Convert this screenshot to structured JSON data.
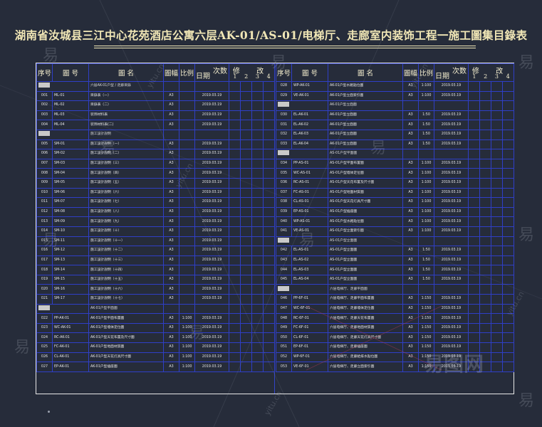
{
  "title": "湖南省汝城县三江中心花苑酒店公寓六层AK-01/AS-01/电梯厅、走廊室内装饰工程一施工圖集目錄表",
  "header": {
    "no": "序号",
    "code": "圖 号",
    "name": "圖 名",
    "size": "圖幅",
    "scale": "比例",
    "version": "次数",
    "date": "日期",
    "revision": "修 改",
    "rev_nums": [
      "1",
      "2",
      "3",
      "4"
    ]
  },
  "left_rows": [
    {
      "sec": true,
      "name": "六层AK-01户型 / 走廊目錄"
    },
    {
      "no": "001",
      "code": "ML-01",
      "name": "目錄表（一）",
      "size": "A3",
      "scale": "",
      "date": "2019.03.19"
    },
    {
      "no": "002",
      "code": "ML-02",
      "name": "目錄表（二）",
      "size": "A3",
      "scale": "",
      "date": "2019.03.19"
    },
    {
      "no": "003",
      "code": "ML-03",
      "name": "装饰材料表",
      "size": "A3",
      "scale": "",
      "date": "2019.03.19"
    },
    {
      "no": "004",
      "code": "ML-04",
      "name": "装饰材料表(二)",
      "size": "A3",
      "scale": "",
      "date": "2019.03.19"
    },
    {
      "sec": true,
      "name": "施工設計說明"
    },
    {
      "no": "005",
      "code": "SM-01",
      "name": "施工設計說明（一）",
      "size": "A3",
      "scale": "",
      "date": "2019.03.19"
    },
    {
      "no": "006",
      "code": "SM-02",
      "name": "施工設計說明（二）",
      "size": "A3",
      "scale": "",
      "date": "2019.03.19"
    },
    {
      "no": "007",
      "code": "SM-03",
      "name": "施工設計說明（三）",
      "size": "A3",
      "scale": "",
      "date": "2019.03.19"
    },
    {
      "no": "008",
      "code": "SM-04",
      "name": "施工設計說明（四）",
      "size": "A3",
      "scale": "",
      "date": "2019.03.19"
    },
    {
      "no": "009",
      "code": "SM-05",
      "name": "施工設計說明（五）",
      "size": "A3",
      "scale": "",
      "date": "2019.03.19"
    },
    {
      "no": "010",
      "code": "SM-06",
      "name": "施工設計說明（六）",
      "size": "A3",
      "scale": "",
      "date": "2019.03.19"
    },
    {
      "no": "011",
      "code": "SM-07",
      "name": "施工設計說明（七）",
      "size": "A3",
      "scale": "",
      "date": "2019.03.19"
    },
    {
      "no": "012",
      "code": "SM-08",
      "name": "施工設計說明（八）",
      "size": "A3",
      "scale": "",
      "date": "2019.03.19"
    },
    {
      "no": "013",
      "code": "SM-09",
      "name": "施工設計說明（九）",
      "size": "A3",
      "scale": "",
      "date": "2019.03.19"
    },
    {
      "no": "014",
      "code": "SM-10",
      "name": "施工設計說明（十）",
      "size": "A3",
      "scale": "",
      "date": "2019.03.19"
    },
    {
      "no": "015",
      "code": "SM-11",
      "name": "施工設計說明（十一）",
      "size": "A3",
      "scale": "",
      "date": "2019.03.19"
    },
    {
      "no": "016",
      "code": "SM-12",
      "name": "施工設計說明（十二）",
      "size": "A3",
      "scale": "",
      "date": "2019.03.19"
    },
    {
      "no": "017",
      "code": "SM-13",
      "name": "施工設計說明（十三）",
      "size": "A3",
      "scale": "",
      "date": "2019.03.19"
    },
    {
      "no": "018",
      "code": "SM-14",
      "name": "施工設計說明（十四）",
      "size": "A3",
      "scale": "",
      "date": "2019.03.19"
    },
    {
      "no": "019",
      "code": "SM-15",
      "name": "施工設計說明（十五）",
      "size": "A3",
      "scale": "",
      "date": "2019.03.19"
    },
    {
      "no": "020",
      "code": "SM-16",
      "name": "施工設計說明（十六）",
      "size": "A3",
      "scale": "",
      "date": "2019.03.19"
    },
    {
      "no": "021",
      "code": "SM-17",
      "name": "施工設計說明（十七）",
      "size": "A3",
      "scale": "",
      "date": "2019.03.19"
    },
    {
      "sec": true,
      "name": "AK-01户型平面圖"
    },
    {
      "no": "022",
      "code": "PP-AK-01",
      "name": "AK-01户型平面布置圖",
      "size": "A3",
      "scale": "1:100",
      "date": "2019.03.19"
    },
    {
      "no": "023",
      "code": "WC-AK-01",
      "name": "AK-01户型墙体定位圖",
      "size": "A3",
      "scale": "1:100",
      "date": "2019.03.19"
    },
    {
      "no": "024",
      "code": "RC-AK-01",
      "name": "AK-01户型天花布置及尺寸圖",
      "size": "A3",
      "scale": "1:100",
      "date": "2019.03.19"
    },
    {
      "no": "025",
      "code": "FC-AK-01",
      "name": "AK-01户型地面材質圖",
      "size": "A3",
      "scale": "1:100",
      "date": "2019.03.19"
    },
    {
      "no": "026",
      "code": "CL-AK-01",
      "name": "AK-01户型天花灯具尺寸圖",
      "size": "A3",
      "scale": "1:100",
      "date": "2019.03.19"
    },
    {
      "no": "027",
      "code": "EP-AK-01",
      "name": "AK-01户型插座圖",
      "size": "A3",
      "scale": "1:100",
      "date": "2019.03.19"
    }
  ],
  "right_rows": [
    {
      "no": "028",
      "code": "WP-AK-01",
      "name": "AK-01户型水路點位圖",
      "size": "A3",
      "scale": "1:100",
      "date": "2019.03.19"
    },
    {
      "no": "029",
      "code": "VE-AK-01",
      "name": "AK-01户型立面索引圖",
      "size": "A3",
      "scale": "1:100",
      "date": "2019.03.19"
    },
    {
      "sec": true,
      "name": "AK-01户型立面圖"
    },
    {
      "no": "030",
      "code": "EL-AK-01",
      "name": "AK-01户型立面圖",
      "size": "A3",
      "scale": "1:50",
      "date": "2019.03.19"
    },
    {
      "no": "031",
      "code": "EL-AK-02",
      "name": "AK-01户型立面圖",
      "size": "A3",
      "scale": "1:50",
      "date": "2019.03.19"
    },
    {
      "no": "032",
      "code": "EL-AK-03",
      "name": "AK-01户型立面圖",
      "size": "A3",
      "scale": "1:50",
      "date": "2019.03.19"
    },
    {
      "no": "033",
      "code": "EL-AK-04",
      "name": "AK-01户型立面圖",
      "size": "A3",
      "scale": "1:50",
      "date": "2019.03.19"
    },
    {
      "sec": true,
      "name": "AS-01户型平面圖"
    },
    {
      "no": "034",
      "code": "PP-AS-01",
      "name": "AS-01户型平面布置圖",
      "size": "A3",
      "scale": "1:100",
      "date": "2019.03.19"
    },
    {
      "no": "035",
      "code": "WC-AS-01",
      "name": "AS-01户型墙体定位圖",
      "size": "A3",
      "scale": "1:100",
      "date": "2019.03.19"
    },
    {
      "no": "036",
      "code": "RC-AS-01",
      "name": "AS-01户型天花布置及尺寸圖",
      "size": "A3",
      "scale": "1:100",
      "date": "2019.03.19"
    },
    {
      "no": "037",
      "code": "FC-AS-01",
      "name": "AS-01户型地面材質圖",
      "size": "A3",
      "scale": "1:100",
      "date": "2019.03.19"
    },
    {
      "no": "038",
      "code": "CL-AS-01",
      "name": "AS-01户型天花灯具尺寸圖",
      "size": "A3",
      "scale": "1:100",
      "date": "2019.03.19"
    },
    {
      "no": "039",
      "code": "EP-AS-01",
      "name": "AS-01户型插座圖",
      "size": "A3",
      "scale": "1:100",
      "date": "2019.03.19"
    },
    {
      "no": "040",
      "code": "WP-AS-01",
      "name": "AS-01户型水路點位圖",
      "size": "A3",
      "scale": "1:100",
      "date": "2019.03.19"
    },
    {
      "no": "041",
      "code": "VE-AS-01",
      "name": "AS-01户型立面索引圖",
      "size": "A3",
      "scale": "1:100",
      "date": "2019.03.19"
    },
    {
      "sec": true,
      "name": "AS-01户型立面圖"
    },
    {
      "no": "042",
      "code": "EL-AS-01",
      "name": "AS-01户型立面圖",
      "size": "A3",
      "scale": "1:50",
      "date": "2019.03.19"
    },
    {
      "no": "043",
      "code": "EL-AS-02",
      "name": "AS-01户型立面圖",
      "size": "A3",
      "scale": "1:50",
      "date": "2019.03.19"
    },
    {
      "no": "044",
      "code": "EL-AS-03",
      "name": "AS-01户型立面圖",
      "size": "A3",
      "scale": "1:50",
      "date": "2019.03.19"
    },
    {
      "no": "045",
      "code": "EL-AS-04",
      "name": "AS-01户型立面圖",
      "size": "A3",
      "scale": "1:50",
      "date": "2019.03.19"
    },
    {
      "sec": true,
      "name": "六层电梯厅、走廊平面圖"
    },
    {
      "no": "046",
      "code": "PP-6F-01",
      "name": "六层电梯厅、走廊平面布置圖",
      "size": "A3",
      "scale": "1:150",
      "date": "2019.03.19"
    },
    {
      "no": "047",
      "code": "WC-6F-01",
      "name": "六层电梯厅、走廊墙体定位圖",
      "size": "A3",
      "scale": "1:150",
      "date": "2019.03.19"
    },
    {
      "no": "048",
      "code": "RC-6F-01",
      "name": "六层电梯厅、走廊天花布置圖",
      "size": "A3",
      "scale": "1:150",
      "date": "2019.03.19"
    },
    {
      "no": "049",
      "code": "FC-6F-01",
      "name": "六层电梯厅、走廊地面材質圖",
      "size": "A3",
      "scale": "1:150",
      "date": "2019.03.19"
    },
    {
      "no": "050",
      "code": "CL-6F-01",
      "name": "六层电梯厅、走廊天花灯具尺寸圖",
      "size": "A3",
      "scale": "1:150",
      "date": "2019.03.19"
    },
    {
      "no": "051",
      "code": "EP-6F-01",
      "name": "六层电梯厅、走廊插座圖",
      "size": "A3",
      "scale": "1:150",
      "date": "2019.03.19"
    },
    {
      "no": "052",
      "code": "WP-6F-01",
      "name": "六层电梯厅、走廊給排水點位圖",
      "size": "A3",
      "scale": "1:150",
      "date": "2019.03.19"
    },
    {
      "no": "053",
      "code": "VE-6F-01",
      "name": "六层电梯厅、走廊立面索引圖",
      "size": "A3",
      "scale": "1:150",
      "date": "2019.03.19"
    }
  ],
  "watermark": {
    "char": "易",
    "site": "yitu.cn",
    "logo": "易图网"
  },
  "colors": {
    "background": "#262c3a",
    "grid": "#2f3fc7",
    "title": "#f1e7b6",
    "border": "#e8e8e8"
  }
}
